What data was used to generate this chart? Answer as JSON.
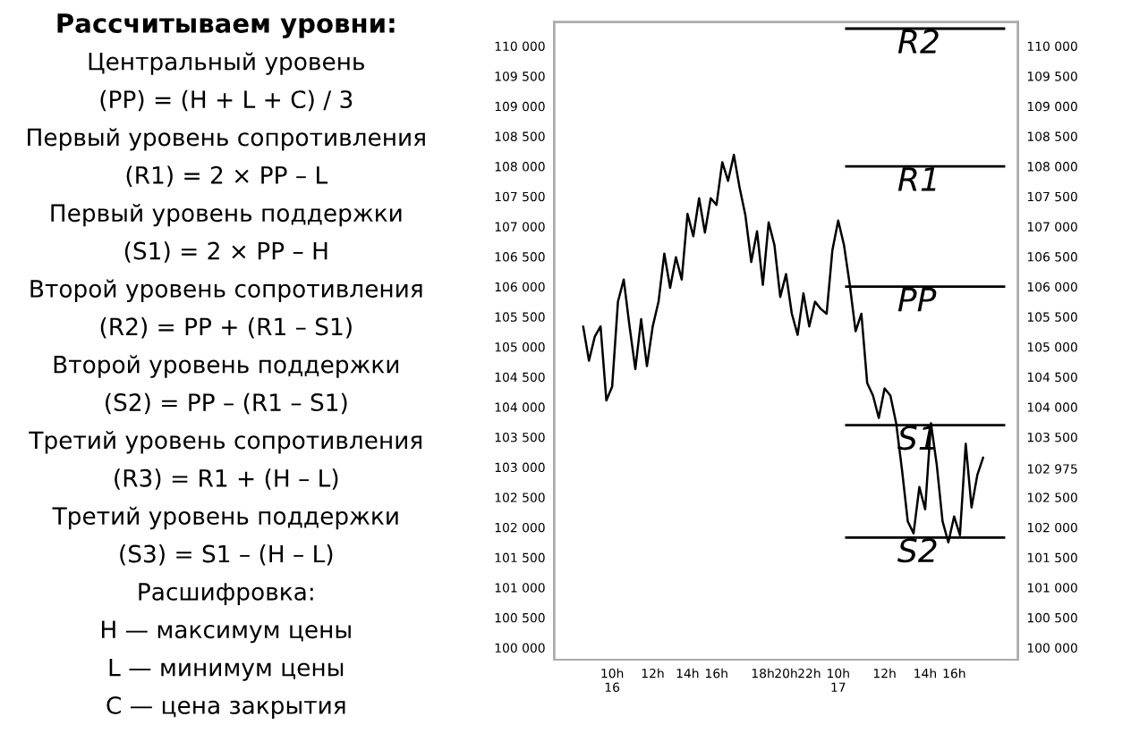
{
  "chart_data": {
    "type": "line",
    "annotations": [
      "Рассчитываем уровни:",
      "Центральный уровень",
      "(PP) = (H + L + C) / 3",
      "Первый уровень сопротивления",
      "(R1) = 2 × PP – L",
      "Первый уровень поддержки",
      "(S1) = 2 × PP – H",
      "Второй уровень сопротивления",
      "(R2) = PP + (R1 – S1)",
      "Второй уровень поддержки",
      "(S2) = PP – (R1 – S1)",
      "Третий уровень сопротивления",
      "(R3) = R1 + (H – L)",
      "Третий уровень поддержки",
      "(S3) = S1 – (H – L)",
      "Расшифровка:",
      "H — максимум цены",
      "L — минимум цены",
      "C — цена закрытия"
    ],
    "categories": [
      null,
      null,
      null,
      null,
      null,
      "10h\n16",
      null,
      null,
      null,
      null,
      null,
      null,
      "12h",
      null,
      null,
      null,
      null,
      null,
      "14h",
      null,
      null,
      null,
      null,
      "16h",
      null,
      null,
      null,
      null,
      null,
      null,
      null,
      "18h",
      null,
      null,
      null,
      "20h",
      null,
      null,
      null,
      "22h",
      null,
      null,
      null,
      null,
      "10h\n17",
      null,
      null,
      null,
      null,
      null,
      null,
      null,
      "12h",
      null,
      null,
      null,
      null,
      null,
      null,
      "14h",
      null,
      null,
      null,
      null,
      "16h",
      null,
      null,
      null,
      null,
      null
    ],
    "series": [
      {
        "color": "#000000",
        "values": [
          105340,
          104770,
          105170,
          105340,
          104110,
          104340,
          105750,
          106120,
          105340,
          104630,
          105460,
          104680,
          105340,
          105750,
          106550,
          105980,
          106490,
          106120,
          107210,
          106840,
          107470,
          106900,
          107470,
          107360,
          108070,
          107760,
          108190,
          107640,
          107180,
          106410,
          106920,
          106030,
          107070,
          106690,
          105830,
          106210,
          105550,
          105200,
          105890,
          105340,
          105750,
          105630,
          105550,
          106610,
          107100,
          106690,
          106030,
          105260,
          105550,
          104400,
          104190,
          103820,
          104310,
          104190,
          103730,
          102960,
          102100,
          101900,
          102670,
          102300,
          103730,
          103040,
          102100,
          101750,
          102180,
          101870,
          103390,
          102330,
          102870,
          103160
        ]
      }
    ],
    "ylim": [
      99800,
      110400
    ],
    "yticks": [
      {
        "value": 110000,
        "label": "110 000"
      },
      {
        "value": 109500,
        "label": "109 500"
      },
      {
        "value": 109000,
        "label": "109 000"
      },
      {
        "value": 108500,
        "label": "108 500"
      },
      {
        "value": 108000,
        "label": "108 000"
      },
      {
        "value": 107500,
        "label": "107 500"
      },
      {
        "value": 107000,
        "label": "107 000"
      },
      {
        "value": 106500,
        "label": "106 500"
      },
      {
        "value": 106000,
        "label": "106 000"
      },
      {
        "value": 105500,
        "label": "105 500"
      },
      {
        "value": 105000,
        "label": "105 000"
      },
      {
        "value": 104500,
        "label": "104 500"
      },
      {
        "value": 104000,
        "label": "104 000"
      },
      {
        "value": 103500,
        "label": "103 500"
      },
      {
        "value": 103000,
        "label": "103 000"
      },
      {
        "value": 102500,
        "label": "102 500"
      },
      {
        "value": 102000,
        "label": "102 000"
      },
      {
        "value": 101500,
        "label": "101 500"
      },
      {
        "value": 101000,
        "label": "101 000"
      },
      {
        "value": 100500,
        "label": "100 500"
      },
      {
        "value": 100000,
        "label": "100 000"
      }
    ],
    "y2lim": [
      99800,
      110400
    ],
    "y2ticks": [
      {
        "value": 110000,
        "label": "110 000"
      },
      {
        "value": 109500,
        "label": "109 500"
      },
      {
        "value": 109000,
        "label": "109 000"
      },
      {
        "value": 108500,
        "label": "108 500"
      },
      {
        "value": 108000,
        "label": "108 000"
      },
      {
        "value": 107500,
        "label": "107 500"
      },
      {
        "value": 107000,
        "label": "107 000"
      },
      {
        "value": 106500,
        "label": "106 500"
      },
      {
        "value": 106000,
        "label": "106 000"
      },
      {
        "value": 105500,
        "label": "105 500"
      },
      {
        "value": 105000,
        "label": "105 000"
      },
      {
        "value": 104500,
        "label": "104 500"
      },
      {
        "value": 104000,
        "label": "104 000"
      },
      {
        "value": 103500,
        "label": "103 500"
      },
      {
        "value": 102975,
        "label": "102 975"
      },
      {
        "value": 102500,
        "label": "102 500"
      },
      {
        "value": 102000,
        "label": "102 000"
      },
      {
        "value": 101500,
        "label": "101 500"
      },
      {
        "value": 101000,
        "label": "101 000"
      },
      {
        "value": 100500,
        "label": "100 500"
      },
      {
        "value": 100000,
        "label": "100 000"
      }
    ],
    "ref_lines": [
      {
        "axis": "y",
        "value": 110290,
        "label": "R2",
        "color": "#000000"
      },
      {
        "axis": "y",
        "value": 108000,
        "label": "R1",
        "color": "#000000"
      },
      {
        "axis": "y",
        "value": 106000,
        "label": "PP",
        "color": "#000000"
      },
      {
        "axis": "y",
        "value": 103700,
        "label": "S1",
        "color": "#000000"
      },
      {
        "axis": "y",
        "value": 101830,
        "label": "S2",
        "color": "#000000"
      }
    ],
    "grid": false,
    "marker": "none",
    "line_style": "solid"
  }
}
